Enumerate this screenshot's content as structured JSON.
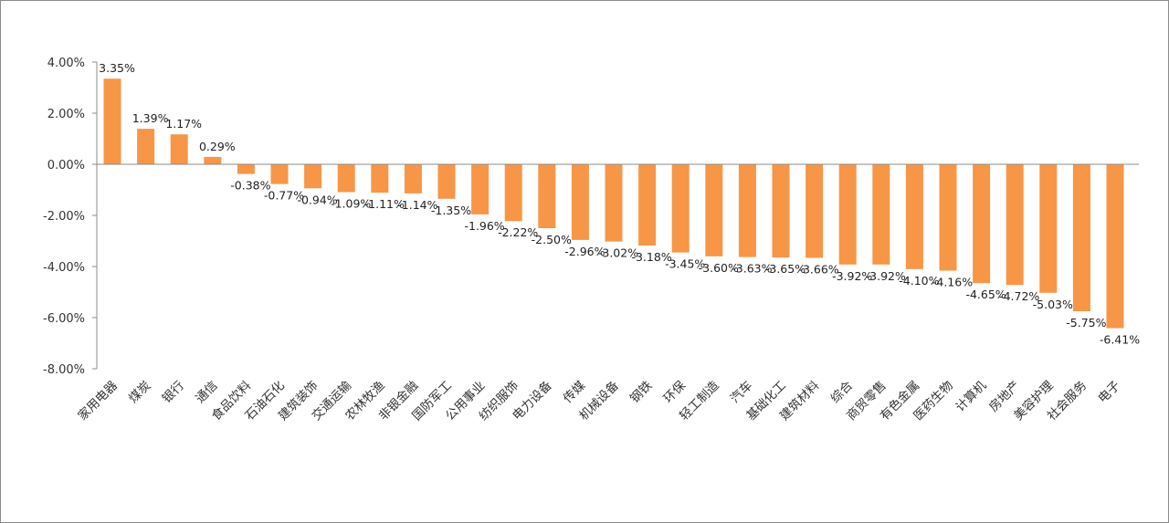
{
  "chart_data": {
    "type": "bar",
    "title": "",
    "xlabel": "",
    "ylabel": "",
    "ylim": [
      -8,
      4
    ],
    "yticks": [
      4,
      2,
      0,
      -2,
      -4,
      -6,
      -8
    ],
    "ytick_labels": [
      "4.00%",
      "2.00%",
      "0.00%",
      "-2.00%",
      "-4.00%",
      "-6.00%",
      "-8.00%"
    ],
    "grid": false,
    "legend": "none",
    "bar_color": "#F79646",
    "categories": [
      "家用电器",
      "煤炭",
      "银行",
      "通信",
      "食品饮料",
      "石油石化",
      "建筑装饰",
      "交通运输",
      "农林牧渔",
      "非银金融",
      "国防军工",
      "公用事业",
      "纺织服饰",
      "电力设备",
      "传媒",
      "机械设备",
      "钢铁",
      "环保",
      "轻工制造",
      "汽车",
      "基础化工",
      "建筑材料",
      "综合",
      "商贸零售",
      "有色金属",
      "医药生物",
      "计算机",
      "房地产",
      "美容护理",
      "社会服务",
      "电子"
    ],
    "values": [
      3.35,
      1.39,
      1.17,
      0.29,
      -0.38,
      -0.77,
      -0.94,
      -1.09,
      -1.11,
      -1.14,
      -1.35,
      -1.96,
      -2.22,
      -2.5,
      -2.96,
      -3.02,
      -3.18,
      -3.45,
      -3.6,
      -3.63,
      -3.65,
      -3.66,
      -3.92,
      -3.92,
      -4.1,
      -4.16,
      -4.65,
      -4.72,
      -5.03,
      -5.75,
      -6.41
    ],
    "value_labels": [
      "3.35%",
      "1.39%",
      "1.17%",
      "0.29%",
      "-0.38%",
      "-0.77%",
      "-0.94%",
      "-1.09%",
      "-1.11%",
      "-1.14%",
      "-1.35%",
      "-1.96%",
      "-2.22%",
      "-2.50%",
      "-2.96%",
      "-3.02%",
      "-3.18%",
      "-3.45%",
      "-3.60%",
      "-3.63%",
      "-3.65%",
      "-3.66%",
      "-3.92%",
      "-3.92%",
      "-4.10%",
      "-4.16%",
      "-4.65%",
      "-4.72%",
      "-5.03%",
      "-5.75%",
      "-6.41%"
    ]
  }
}
